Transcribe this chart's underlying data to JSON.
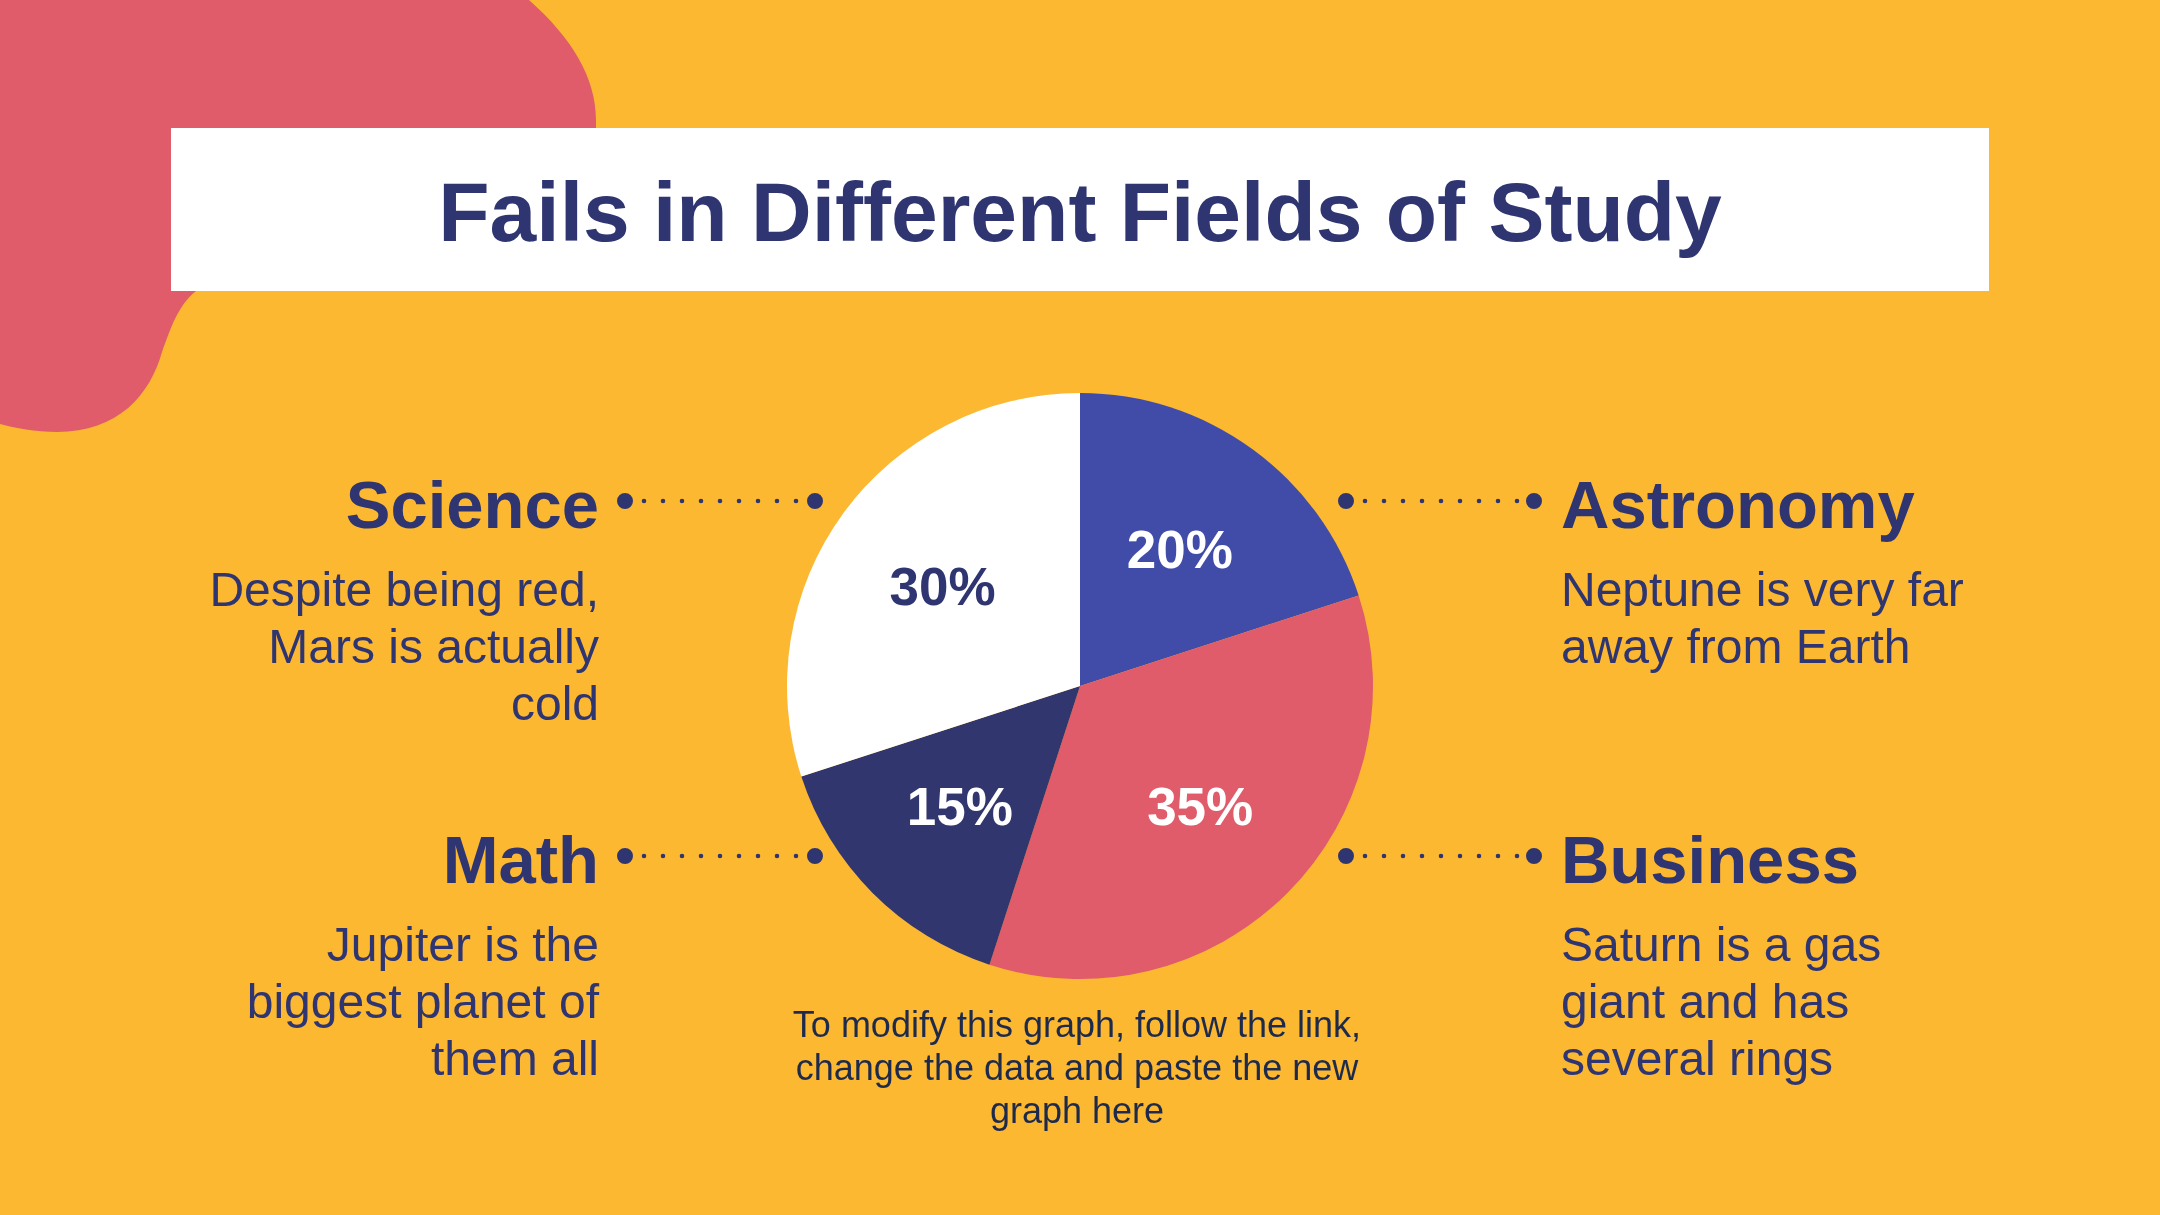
{
  "chart_data": {
    "type": "pie",
    "title": "Fails in Different Fields of Study",
    "categories": [
      "Astronomy",
      "Business",
      "Math",
      "Science"
    ],
    "values": [
      20,
      35,
      15,
      30
    ],
    "colors": [
      "#414ca9",
      "#e05c6b",
      "#32366e",
      "#ffffff"
    ],
    "value_labels": [
      "20%",
      "35%",
      "15%",
      "30%"
    ],
    "annotations": [
      "Neptune is very far away from Earth",
      "Saturn is a gas giant and has several rings",
      "Jupiter is the biggest planet of them all",
      "Despite being red, Mars is actually cold",
      "To modify this graph, follow the link, change the data and paste the new graph here"
    ]
  }
}
